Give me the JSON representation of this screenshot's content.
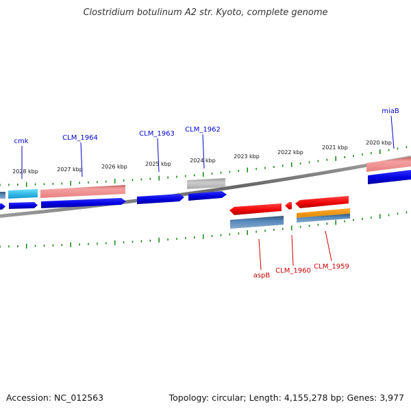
{
  "title": "Clostridium botulinum A2 str. Kyoto, complete genome",
  "footer": {
    "accession": "Accession: NC_012563",
    "summary": "Topology: circular; Length: 4,155,278 bp; Genes: 3,977"
  },
  "scale": {
    "tick_labels": [
      "2028 kbp",
      "2027 kbp",
      "2026 kbp",
      "2025 kbp",
      "2024 kbp",
      "2023 kbp",
      "2022 kbp",
      "2021 kbp",
      "2020 kbp"
    ]
  },
  "gene_labels": {
    "forward": [
      "cmk",
      "CLM_1964",
      "CLM_1963",
      "CLM_1962",
      "miaB"
    ],
    "reverse": [
      "aspB",
      "CLM_1960",
      "CLM_1959"
    ]
  },
  "colors": {
    "forward_label": "#0000cc",
    "reverse_label": "#cc0000",
    "tick": "#1a8a1a",
    "backbone": "#777777",
    "cds_blue": "#0000ee",
    "cds_cyan": "#22bbee",
    "cds_pink": "#ee8888",
    "cds_gray": "#bbbbbb",
    "cds_red": "#ee0000",
    "cds_steel": "#4477aa",
    "cds_orange": "#ee9911"
  }
}
